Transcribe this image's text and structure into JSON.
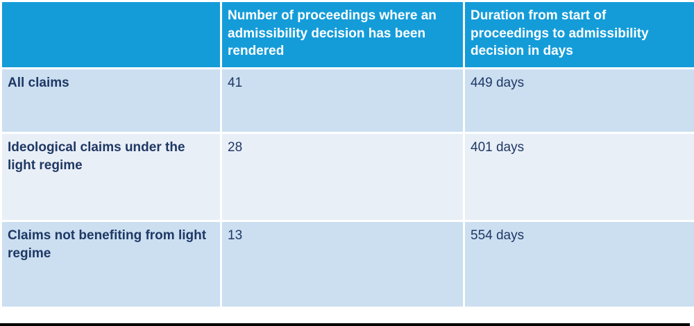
{
  "table": {
    "columns": [
      {
        "label": ""
      },
      {
        "label": "Number of proceedings where an admissibility decision has been rendered"
      },
      {
        "label": "Duration from start of proceedings to admissibility decision in days"
      }
    ],
    "rows": [
      {
        "label": "All claims",
        "proceedings": "41",
        "duration": "449 days"
      },
      {
        "label": "Ideological claims under the light regime",
        "proceedings": "28",
        "duration": "401 days"
      },
      {
        "label": "Claims not benefiting from light regime",
        "proceedings": "13",
        "duration": "554 days"
      }
    ]
  },
  "colors": {
    "header_background": "#149CD9",
    "header_text": "#ffffff",
    "row_band_dark": "#CBDFF1",
    "row_band_light": "#E9EFF7",
    "body_text": "#1F3864",
    "gridline": "#ffffff",
    "bottom_border": "#000000"
  }
}
